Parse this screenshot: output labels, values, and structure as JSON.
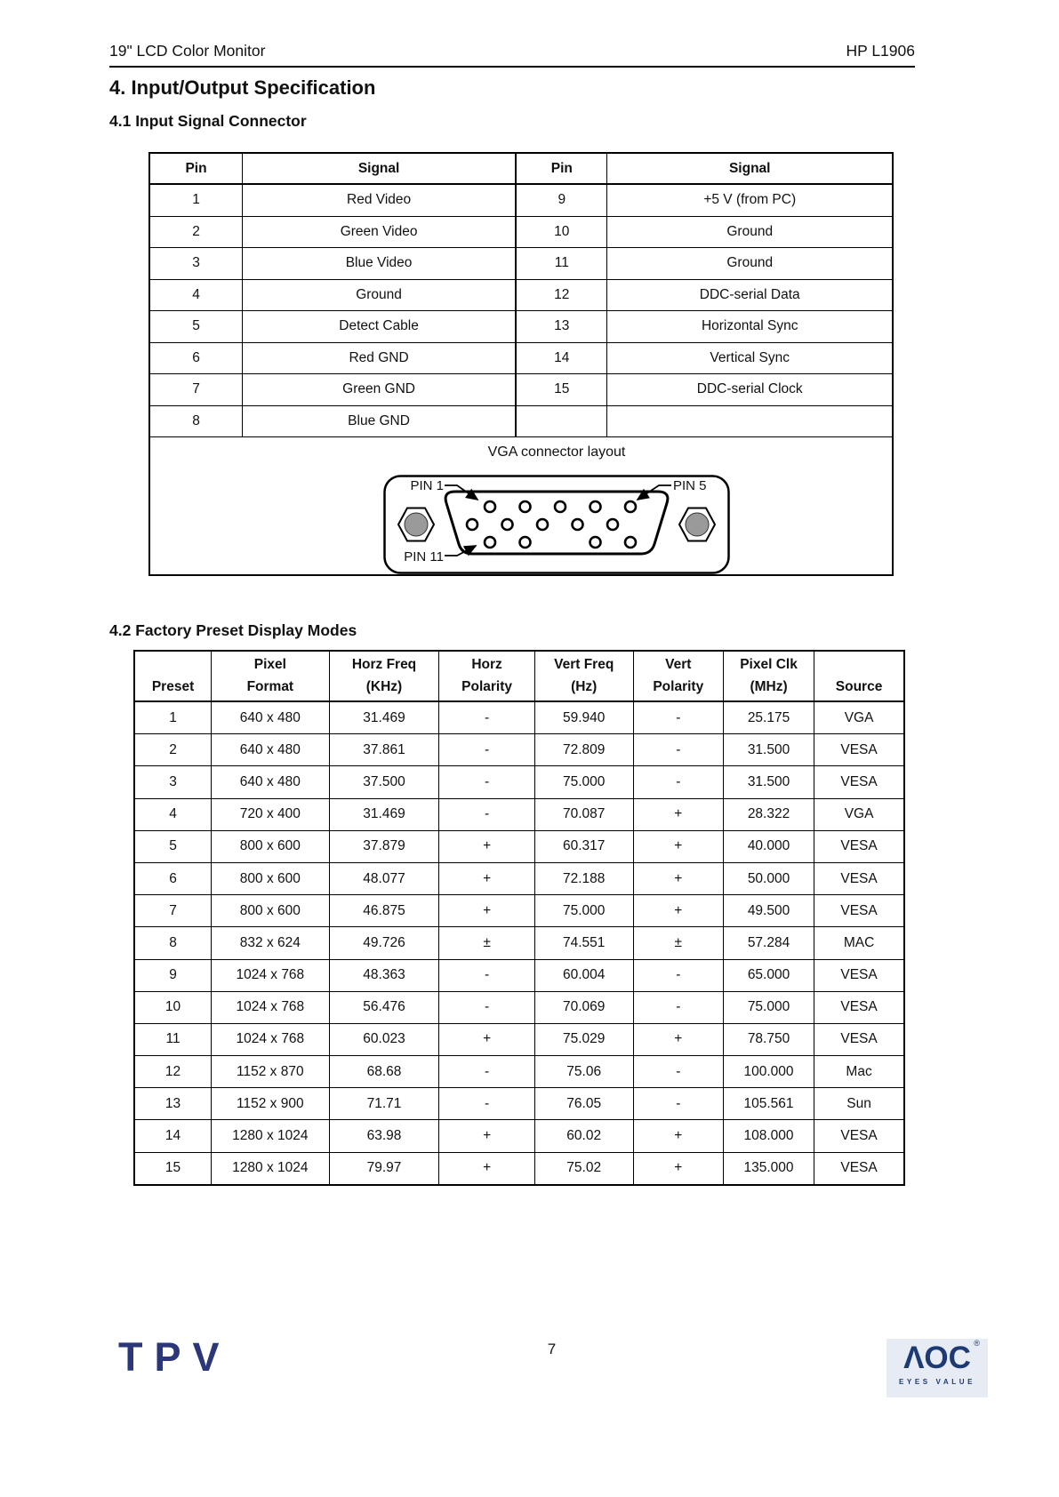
{
  "header": {
    "left": "19\" LCD Color Monitor",
    "right": "HP L1906"
  },
  "section_title": "4. Input/Output Specification",
  "section_41": {
    "title": "4.1 Input Signal Connector",
    "table": {
      "headers": [
        "Pin",
        "Signal",
        "Pin",
        "Signal"
      ],
      "rows": [
        [
          "1",
          "Red Video",
          "9",
          "+5 V (from PC)"
        ],
        [
          "2",
          "Green Video",
          "10",
          "Ground"
        ],
        [
          "3",
          "Blue Video",
          "11",
          "Ground"
        ],
        [
          "4",
          "Ground",
          "12",
          "DDC-serial Data"
        ],
        [
          "5",
          "Detect Cable",
          "13",
          "Horizontal Sync"
        ],
        [
          "6",
          "Red GND",
          "14",
          "Vertical Sync"
        ],
        [
          "7",
          "Green GND",
          "15",
          "DDC-serial Clock"
        ],
        [
          "8",
          "Blue GND",
          "",
          ""
        ]
      ]
    },
    "connector": {
      "caption": "VGA connector layout",
      "pin1_label": "PIN 1",
      "pin5_label": "PIN 5",
      "pin11_label": "PIN 11"
    }
  },
  "section_42": {
    "title": "4.2 Factory Preset Display Modes",
    "table": {
      "headers": [
        {
          "l1": "",
          "l2": "Preset"
        },
        {
          "l1": "Pixel",
          "l2": "Format"
        },
        {
          "l1": "Horz Freq",
          "l2": "(KHz)"
        },
        {
          "l1": "Horz",
          "l2": "Polarity"
        },
        {
          "l1": "Vert Freq",
          "l2": "(Hz)"
        },
        {
          "l1": "Vert",
          "l2": "Polarity"
        },
        {
          "l1": "Pixel Clk",
          "l2": "(MHz)"
        },
        {
          "l1": "",
          "l2": "Source"
        }
      ],
      "rows": [
        [
          "1",
          "640 x 480",
          "31.469",
          "-",
          "59.940",
          "-",
          "25.175",
          "VGA"
        ],
        [
          "2",
          "640 x 480",
          "37.861",
          "-",
          "72.809",
          "-",
          "31.500",
          "VESA"
        ],
        [
          "3",
          "640 x 480",
          "37.500",
          "-",
          "75.000",
          "-",
          "31.500",
          "VESA"
        ],
        [
          "4",
          "720 x 400",
          "31.469",
          "-",
          "70.087",
          "+",
          "28.322",
          "VGA"
        ],
        [
          "5",
          "800 x 600",
          "37.879",
          "+",
          "60.317",
          "+",
          "40.000",
          "VESA"
        ],
        [
          "6",
          "800 x 600",
          "48.077",
          "+",
          "72.188",
          "+",
          "50.000",
          "VESA"
        ],
        [
          "7",
          "800 x 600",
          "46.875",
          "+",
          "75.000",
          "+",
          "49.500",
          "VESA"
        ],
        [
          "8",
          "832 x 624",
          "49.726",
          "±",
          "74.551",
          "±",
          "57.284",
          "MAC"
        ],
        [
          "9",
          "1024 x 768",
          "48.363",
          "-",
          "60.004",
          "-",
          "65.000",
          "VESA"
        ],
        [
          "10",
          "1024 x 768",
          "56.476",
          "-",
          "70.069",
          "-",
          "75.000",
          "VESA"
        ],
        [
          "11",
          "1024 x 768",
          "60.023",
          "+",
          "75.029",
          "+",
          "78.750",
          "VESA"
        ],
        [
          "12",
          "1152 x 870",
          "68.68",
          "-",
          "75.06",
          "-",
          "100.000",
          "Mac"
        ],
        [
          "13",
          "1152 x 900",
          "71.71",
          "-",
          "76.05",
          "-",
          "105.561",
          "Sun"
        ],
        [
          "14",
          "1280 x 1024",
          "63.98",
          "+",
          "60.02",
          "+",
          "108.000",
          "VESA"
        ],
        [
          "15",
          "1280 x 1024",
          "79.97",
          "+",
          "75.02",
          "+",
          "135.000",
          "VESA"
        ]
      ]
    }
  },
  "footer": {
    "page_number": "7",
    "tpv_logo_text": "TPV",
    "aoc_logo_text": "ΛOC",
    "aoc_registered": "®",
    "aoc_tagline": "EYES VALUE"
  },
  "colors": {
    "logo_navy": "#2b3779",
    "aoc_navy": "#1d3a72",
    "aoc_background": "#e7ebf4",
    "screw_gray": "#9a9a9a"
  }
}
